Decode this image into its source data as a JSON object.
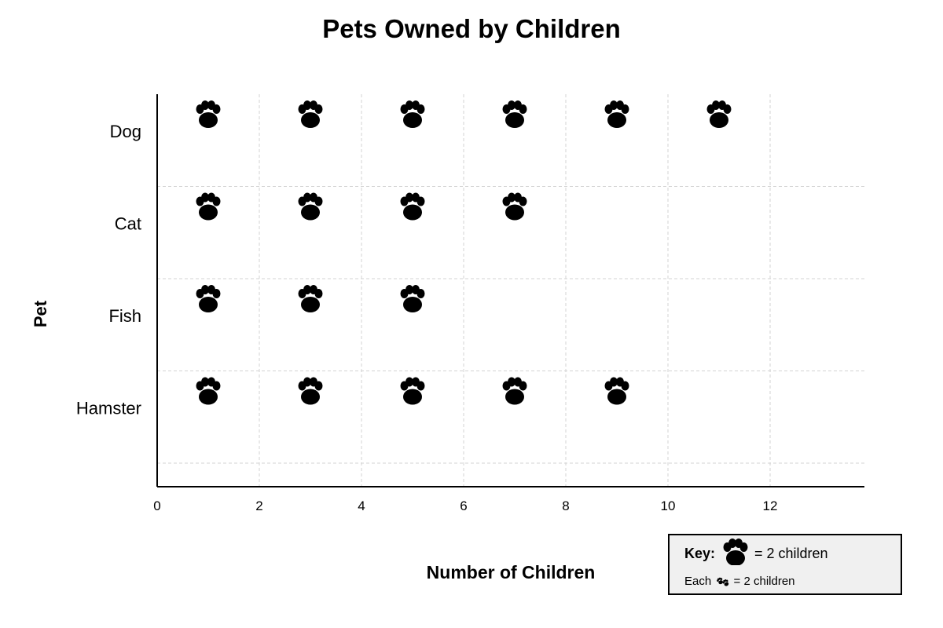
{
  "chart_data": {
    "type": "pictograph",
    "title": "Pets Owned by Children",
    "xlabel": "Number of Children",
    "ylabel": "Pet",
    "categories": [
      "Dog",
      "Cat",
      "Fish",
      "Hamster"
    ],
    "values": [
      12,
      8,
      6,
      10
    ],
    "xlim": [
      0,
      13.8
    ],
    "xticks": [
      0,
      2,
      4,
      6,
      8,
      10,
      12
    ],
    "grid": true,
    "icon": "paw-print-icon",
    "icon_color": "#000000",
    "children_per_icon": 2,
    "key": {
      "title": "Key:",
      "value_text": "= 2 children",
      "note_prefix": "Each",
      "note_suffix": "= 2 children",
      "placement": "bottom-right",
      "background": "#f0f0f0"
    }
  }
}
